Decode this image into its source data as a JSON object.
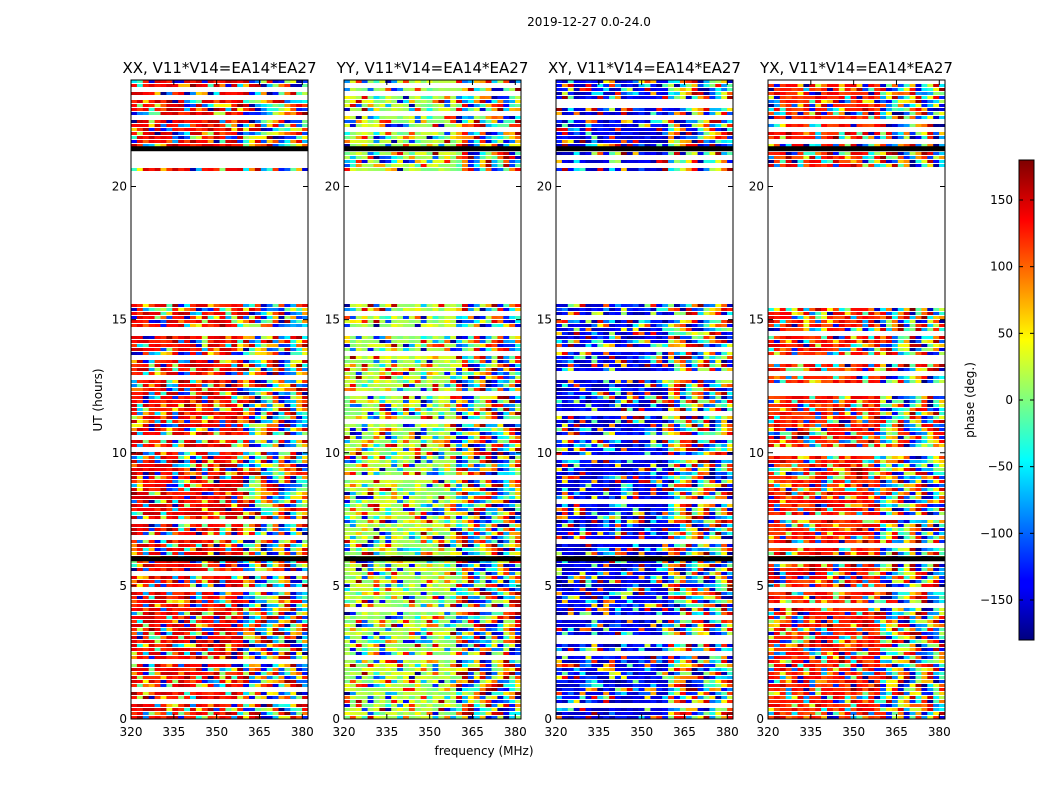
{
  "figure": {
    "suptitle": "2019-12-27 0.0-24.0",
    "xlabel": "frequency (MHz)",
    "ylabel": "UT (hours)"
  },
  "chart_data": {
    "type": "heatmap",
    "value_label": "phase (deg.)",
    "colormap": "jet",
    "color_range": [
      -180,
      180
    ],
    "colorbar_ticks": [
      150,
      100,
      50,
      0,
      -50,
      -100,
      -150
    ],
    "colorbar_tick_labels": [
      "150",
      "100",
      "50",
      "0",
      "−50",
      "−100",
      "−150"
    ],
    "xlim": [
      320,
      382
    ],
    "ylim": [
      0,
      24
    ],
    "x_ticks": [
      320,
      335,
      350,
      365,
      380
    ],
    "y_ticks": [
      0,
      5,
      10,
      15,
      20
    ],
    "grid": false,
    "missing_data_ut_ranges": [
      [
        20.5,
        15.6
      ]
    ],
    "panels": [
      {
        "title": "XX, V11*V14=EA14*EA27",
        "polarization": "XX"
      },
      {
        "title": "YY, V11*V14=EA14*EA27",
        "polarization": "YY"
      },
      {
        "title": "XY, V11*V14=EA14*EA27",
        "polarization": "XY"
      },
      {
        "title": "YX, V11*V14=EA14*EA27",
        "polarization": "YX"
      }
    ]
  }
}
